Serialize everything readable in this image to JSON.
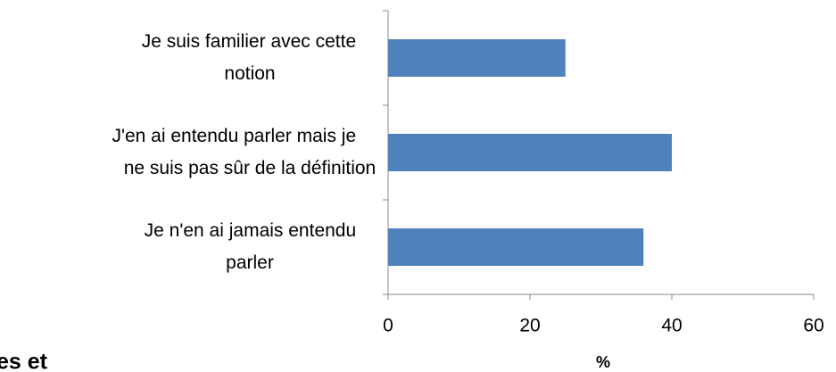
{
  "chart_data": {
    "type": "bar",
    "orientation": "horizontal",
    "categories": [
      "Je suis familier avec cette notion",
      "J'en ai entendu parler mais je ne suis pas sûr de la définition",
      "Je n'en ai jamais entendu parler"
    ],
    "values": [
      25,
      40,
      36
    ],
    "color": "#4f81bd",
    "xlim": [
      0,
      60
    ],
    "xticks": [
      0,
      20,
      40,
      60
    ],
    "xlabel": "%",
    "grid": false
  },
  "fragment_text": "es et"
}
